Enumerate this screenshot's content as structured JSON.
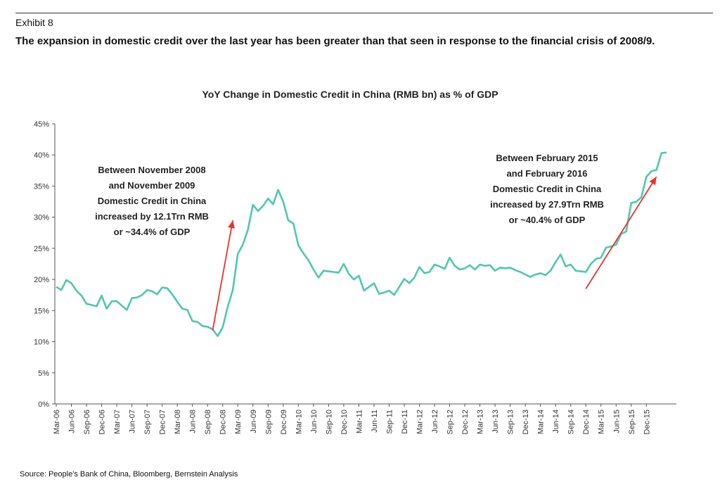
{
  "header": {
    "exhibit": "Exhibit 8",
    "headline": "The expansion in domestic credit over the last year has been greater than that seen in response to the financial crisis of 2008/9."
  },
  "source": "Source: People's Bank of China, Bloomberg, Bernstein Analysis",
  "colors": {
    "line": "#4fc7b0",
    "arrow": "#e8322d",
    "axis": "#555555"
  },
  "chart_data": {
    "type": "line",
    "title": "YoY Change in Domestic Credit in China (RMB bn) as % of GDP",
    "xlabel": "",
    "ylabel": "",
    "ylim": [
      0,
      45
    ],
    "yticks": [
      "0%",
      "5%",
      "10%",
      "15%",
      "20%",
      "25%",
      "30%",
      "35%",
      "40%",
      "45%"
    ],
    "xticks": [
      "Mar-06",
      "Jun-06",
      "Sep-06",
      "Dec-06",
      "Mar-07",
      "Jun-07",
      "Sep-07",
      "Dec-07",
      "Mar-08",
      "Jun-08",
      "Sep-08",
      "Dec-08",
      "Mar-09",
      "Jun-09",
      "Sep-09",
      "Dec-09",
      "Mar-10",
      "Jun-10",
      "Sep-10",
      "Dec-10",
      "Mar-11",
      "Jun-11",
      "Sep-11",
      "Dec-11",
      "Mar-12",
      "Jun-12",
      "Sep-12",
      "Dec-12",
      "Mar-13",
      "Jun-13",
      "Sep-13",
      "Dec-13",
      "Mar-14",
      "Jun-14",
      "Sep-14",
      "Dec-14",
      "Mar-15",
      "Jun-15",
      "Sep-15",
      "Dec-15"
    ],
    "series": [
      {
        "name": "YoY Change in Domestic Credit (% of GDP)",
        "start": "Mar-06",
        "values": [
          18.8,
          18.3,
          19.9,
          19.4,
          18.2,
          17.4,
          16.1,
          15.9,
          15.7,
          17.4,
          15.3,
          16.5,
          16.5,
          15.8,
          15.1,
          17.0,
          17.1,
          17.5,
          18.3,
          18.1,
          17.6,
          18.7,
          18.6,
          17.6,
          16.4,
          15.3,
          15.1,
          13.3,
          13.2,
          12.5,
          12.4,
          12.0,
          10.9,
          12.3,
          15.6,
          18.3,
          24.1,
          25.6,
          28.0,
          32.0,
          31.0,
          31.8,
          33.0,
          32.1,
          34.4,
          32.5,
          29.5,
          29.0,
          25.5,
          24.2,
          23.1,
          21.6,
          20.3,
          21.4,
          21.3,
          21.2,
          21.1,
          22.5,
          20.9,
          20.0,
          20.6,
          18.2,
          18.8,
          19.4,
          17.7,
          17.9,
          18.2,
          17.5,
          18.8,
          20.1,
          19.4,
          20.3,
          22.0,
          21.0,
          21.2,
          22.4,
          22.1,
          21.7,
          23.5,
          22.2,
          21.6,
          21.8,
          22.3,
          21.6,
          22.4,
          22.2,
          22.3,
          21.4,
          21.9,
          21.8,
          21.9,
          21.5,
          21.2,
          20.8,
          20.4,
          20.8,
          21.0,
          20.7,
          21.4,
          22.8,
          24.0,
          22.1,
          22.4,
          21.4,
          21.3,
          21.2,
          22.5,
          23.3,
          23.5,
          25.1,
          25.3,
          25.6,
          27.3,
          27.7,
          32.3,
          32.5,
          33.2,
          36.5,
          37.4,
          37.6,
          40.3,
          40.4
        ]
      }
    ],
    "annotations": [
      {
        "lines": [
          "Between November 2008",
          "and November 2009",
          "Domestic Credit in China",
          "increased by 12.1Trn RMB",
          "or ~34.4% of GDP"
        ]
      },
      {
        "lines": [
          "Between February 2015",
          "and February 2016",
          "Domestic Credit in China",
          "increased by 27.9Trn RMB",
          "or ~40.4% of GDP"
        ]
      }
    ],
    "arrows": [
      {
        "from": [
          "Oct-08",
          11.8
        ],
        "to": [
          "Feb-09",
          29.5
        ]
      },
      {
        "from": [
          "Dec-14",
          18.5
        ],
        "to": [
          "Feb-16",
          36.5
        ]
      }
    ]
  }
}
